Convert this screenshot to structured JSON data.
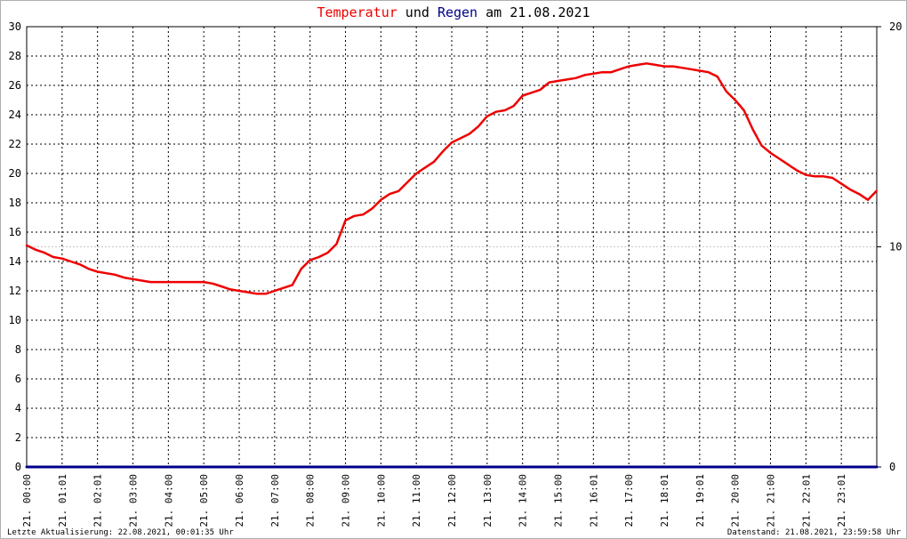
{
  "title": {
    "part1": "Temperatur",
    "part2": " und ",
    "part3": "Regen",
    "part4": " am 21.08.2021",
    "color_temp": "#ee0000",
    "color_rain": "#000088",
    "color_text": "#000000"
  },
  "footer": {
    "left": "Letzte Aktualisierung: 22.08.2021, 00:01:35 Uhr",
    "right": "Datenstand: 21.08.2021, 23:59:58 Uhr"
  },
  "chart_data": {
    "type": "line",
    "x_unit": "hours",
    "xlim": [
      0,
      24
    ],
    "x_ticks": [
      {
        "x": 0.0,
        "label": "21. 00:00"
      },
      {
        "x": 1.0,
        "label": "21. 01:01"
      },
      {
        "x": 2.0,
        "label": "21. 02:01"
      },
      {
        "x": 3.0,
        "label": "21. 03:00"
      },
      {
        "x": 4.0,
        "label": "21. 04:00"
      },
      {
        "x": 5.0,
        "label": "21. 05:00"
      },
      {
        "x": 6.0,
        "label": "21. 06:00"
      },
      {
        "x": 7.0,
        "label": "21. 07:00"
      },
      {
        "x": 8.0,
        "label": "21. 08:00"
      },
      {
        "x": 9.0,
        "label": "21. 09:00"
      },
      {
        "x": 10.0,
        "label": "21. 10:00"
      },
      {
        "x": 11.0,
        "label": "21. 11:00"
      },
      {
        "x": 12.0,
        "label": "21. 12:00"
      },
      {
        "x": 13.0,
        "label": "21. 13:00"
      },
      {
        "x": 14.0,
        "label": "21. 14:00"
      },
      {
        "x": 15.0,
        "label": "21. 15:00"
      },
      {
        "x": 16.0,
        "label": "21. 16:01"
      },
      {
        "x": 17.0,
        "label": "21. 17:00"
      },
      {
        "x": 18.0,
        "label": "21. 18:01"
      },
      {
        "x": 19.0,
        "label": "21. 19:01"
      },
      {
        "x": 20.0,
        "label": "21. 20:00"
      },
      {
        "x": 21.0,
        "label": "21. 21:00"
      },
      {
        "x": 22.0,
        "label": "21. 22:01"
      },
      {
        "x": 23.0,
        "label": "21. 23:01"
      }
    ],
    "y_left": {
      "lim": [
        0,
        30
      ],
      "ticks": [
        0,
        2,
        4,
        6,
        8,
        10,
        12,
        14,
        16,
        18,
        20,
        22,
        24,
        26,
        28,
        30
      ]
    },
    "y_right": {
      "lim": [
        0,
        20
      ],
      "ticks": [
        0,
        10,
        20
      ]
    },
    "grid": true,
    "series": [
      {
        "name": "Temperatur",
        "axis": "left",
        "color": "#ee0000",
        "x": [
          0.0,
          0.25,
          0.5,
          0.75,
          1.0,
          1.25,
          1.5,
          1.75,
          2.0,
          2.25,
          2.5,
          2.75,
          3.0,
          3.25,
          3.5,
          3.75,
          4.0,
          4.25,
          4.5,
          4.75,
          5.0,
          5.25,
          5.5,
          5.75,
          6.0,
          6.25,
          6.5,
          6.75,
          7.0,
          7.25,
          7.5,
          7.75,
          8.0,
          8.25,
          8.5,
          8.75,
          9.0,
          9.25,
          9.5,
          9.75,
          10.0,
          10.25,
          10.5,
          10.75,
          11.0,
          11.25,
          11.5,
          11.75,
          12.0,
          12.25,
          12.5,
          12.75,
          13.0,
          13.25,
          13.5,
          13.75,
          14.0,
          14.25,
          14.5,
          14.75,
          15.0,
          15.25,
          15.5,
          15.75,
          16.0,
          16.25,
          16.5,
          16.75,
          17.0,
          17.25,
          17.5,
          17.75,
          18.0,
          18.25,
          18.5,
          18.75,
          19.0,
          19.25,
          19.5,
          19.75,
          20.0,
          20.25,
          20.5,
          20.75,
          21.0,
          21.25,
          21.5,
          21.75,
          22.0,
          22.25,
          22.5,
          22.75,
          23.0,
          23.25,
          23.5,
          23.75,
          23.99
        ],
        "y": [
          15.1,
          14.8,
          14.6,
          14.3,
          14.2,
          14.0,
          13.8,
          13.5,
          13.3,
          13.2,
          13.1,
          12.9,
          12.8,
          12.7,
          12.6,
          12.6,
          12.6,
          12.6,
          12.6,
          12.6,
          12.6,
          12.5,
          12.3,
          12.1,
          12.0,
          11.9,
          11.8,
          11.8,
          12.0,
          12.2,
          12.4,
          13.5,
          14.1,
          14.3,
          14.6,
          15.2,
          16.8,
          17.1,
          17.2,
          17.6,
          18.2,
          18.6,
          18.8,
          19.4,
          20.0,
          20.4,
          20.8,
          21.5,
          22.1,
          22.4,
          22.7,
          23.2,
          23.9,
          24.2,
          24.3,
          24.6,
          25.3,
          25.5,
          25.7,
          26.2,
          26.3,
          26.4,
          26.5,
          26.7,
          26.8,
          26.9,
          26.9,
          27.1,
          27.3,
          27.4,
          27.5,
          27.4,
          27.3,
          27.3,
          27.2,
          27.1,
          27.0,
          26.9,
          26.6,
          25.6,
          25.0,
          24.3,
          23.0,
          21.9,
          21.4,
          21.0,
          20.6,
          20.2,
          19.9,
          19.8,
          19.8,
          19.7,
          19.3,
          18.9,
          18.6,
          18.2,
          18.8
        ]
      },
      {
        "name": "Regen",
        "axis": "right",
        "color": "#000088",
        "x": [
          0,
          24
        ],
        "y": [
          0,
          0
        ]
      }
    ]
  }
}
